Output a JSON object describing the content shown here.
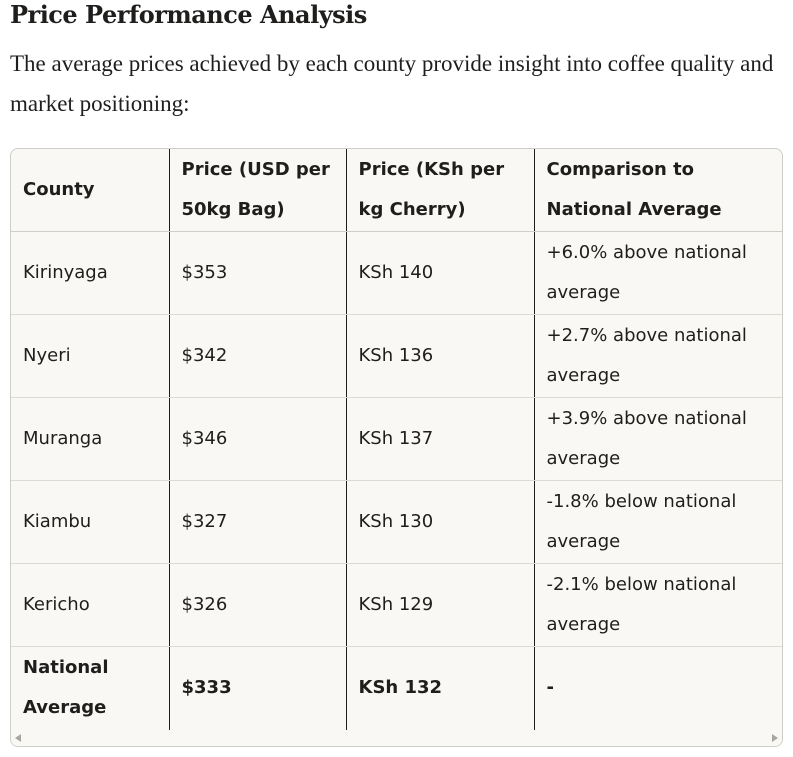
{
  "section": {
    "heading": "Price Performance Analysis",
    "intro": "The average prices achieved by each county provide insight into coffee quality and market positioning:"
  },
  "table": {
    "headers": {
      "county": "County",
      "price_usd": "Price (USD per 50kg Bag)",
      "price_ksh": "Price (KSh per kg Cherry)",
      "comparison": "Comparison to National Average"
    },
    "rows": [
      {
        "county": "Kirinyaga",
        "price_usd": "$353",
        "price_ksh": "KSh 140",
        "comparison": "+6.0% above national average"
      },
      {
        "county": "Nyeri",
        "price_usd": "$342",
        "price_ksh": "KSh 136",
        "comparison": "+2.7% above national average"
      },
      {
        "county": "Muranga",
        "price_usd": "$346",
        "price_ksh": "KSh 137",
        "comparison": "+3.9% above national average"
      },
      {
        "county": "Kiambu",
        "price_usd": "$327",
        "price_ksh": "KSh 130",
        "comparison": "-1.8% below national average"
      },
      {
        "county": "Kericho",
        "price_usd": "$326",
        "price_ksh": "KSh 129",
        "comparison": "-2.1% below national average"
      }
    ],
    "total": {
      "county": "National Average",
      "price_usd": "$333",
      "price_ksh": "KSh 132",
      "comparison": "-"
    }
  },
  "colors": {
    "text": "#1f1e1d",
    "table_background": "#f9f8f5",
    "border": "#cfcdc7"
  },
  "icons": {
    "scroll_left": "scroll-left-arrow-icon",
    "scroll_right": "scroll-right-arrow-icon"
  }
}
